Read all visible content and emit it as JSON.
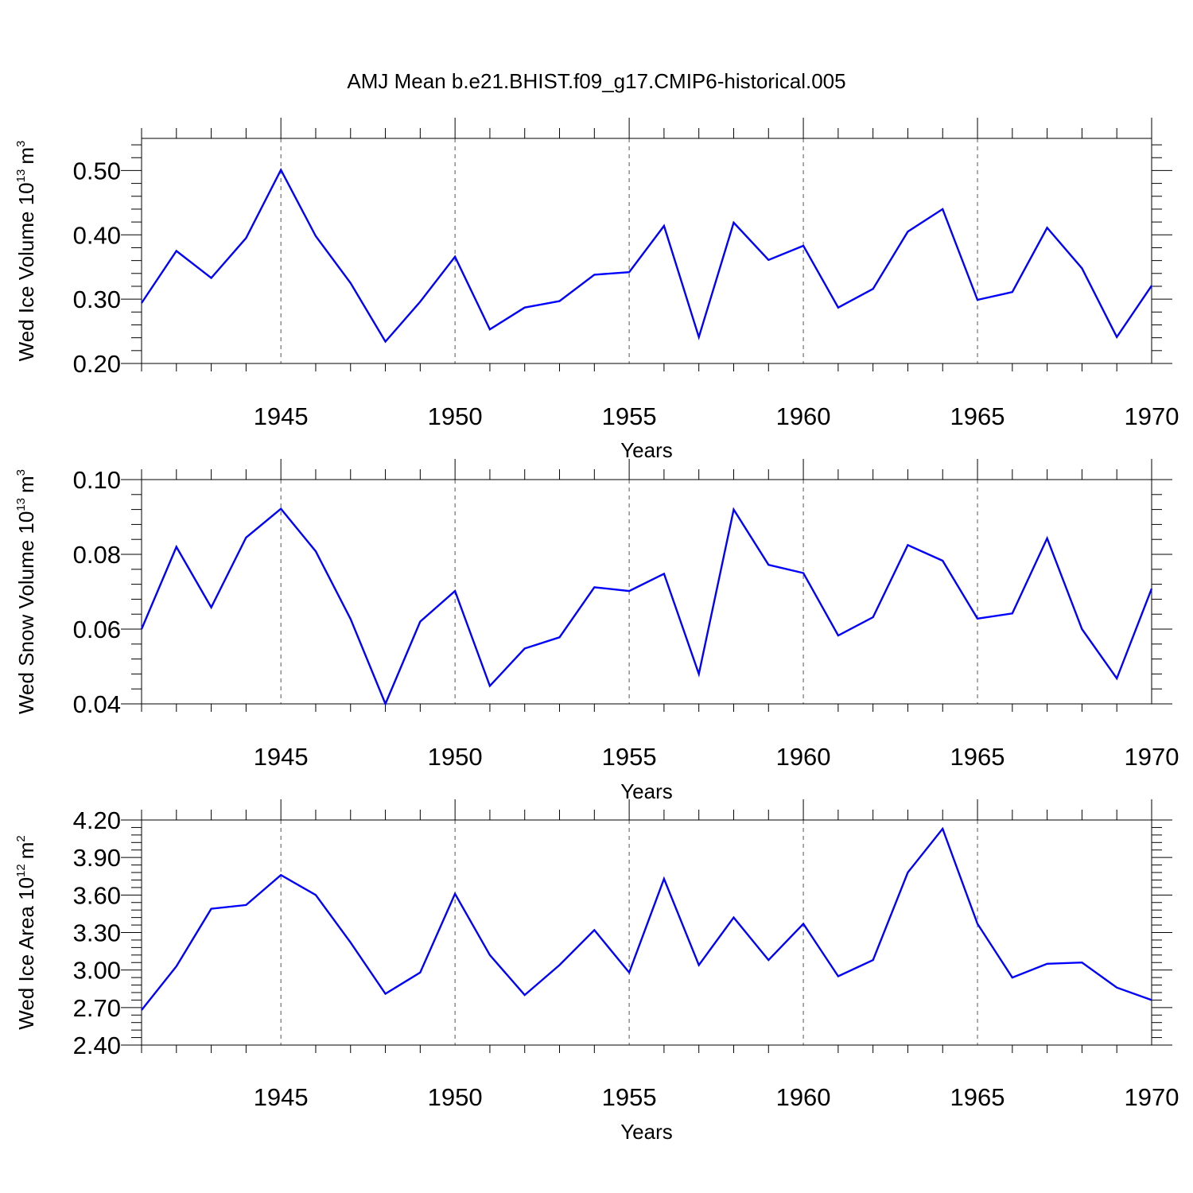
{
  "title": "AMJ Mean b.e21.BHIST.f09_g17.CMIP6-historical.005",
  "line_color": "#0000ff",
  "chart_data": [
    {
      "type": "line",
      "ylabel": "Wed Ice Volume 10",
      "ylabel_exp": "13",
      "ylabel_unit": "m",
      "ylabel_unit_exp": "3",
      "xlabel": "Years",
      "xlim": [
        1941,
        1970
      ],
      "ylim": [
        0.2,
        0.55
      ],
      "yticks": [
        "0.20",
        "0.30",
        "0.40",
        "0.50"
      ],
      "xticks": [
        "1945",
        "1950",
        "1955",
        "1960",
        "1965",
        "1970"
      ],
      "x": [
        1941,
        1942,
        1943,
        1944,
        1945,
        1946,
        1947,
        1948,
        1949,
        1950,
        1951,
        1952,
        1953,
        1954,
        1955,
        1956,
        1957,
        1958,
        1959,
        1960,
        1961,
        1962,
        1963,
        1964,
        1965,
        1966,
        1967,
        1968,
        1969,
        1970
      ],
      "values": [
        0.294,
        0.375,
        0.333,
        0.395,
        0.501,
        0.398,
        0.325,
        0.234,
        0.296,
        0.366,
        0.253,
        0.287,
        0.297,
        0.338,
        0.342,
        0.414,
        0.241,
        0.419,
        0.361,
        0.383,
        0.287,
        0.316,
        0.405,
        0.44,
        0.299,
        0.311,
        0.411,
        0.348,
        0.241,
        0.321
      ]
    },
    {
      "type": "line",
      "ylabel": "Wed Snow Volume 10",
      "ylabel_exp": "13",
      "ylabel_unit": "m",
      "ylabel_unit_exp": "3",
      "xlabel": "Years",
      "xlim": [
        1941,
        1970
      ],
      "ylim": [
        0.04,
        0.1
      ],
      "yticks": [
        "0.04",
        "0.06",
        "0.08",
        "0.10"
      ],
      "xticks": [
        "1945",
        "1950",
        "1955",
        "1960",
        "1965",
        "1970"
      ],
      "x": [
        1941,
        1942,
        1943,
        1944,
        1945,
        1946,
        1947,
        1948,
        1949,
        1950,
        1951,
        1952,
        1953,
        1954,
        1955,
        1956,
        1957,
        1958,
        1959,
        1960,
        1961,
        1962,
        1963,
        1964,
        1965,
        1966,
        1967,
        1968,
        1969,
        1970
      ],
      "values": [
        0.06,
        0.082,
        0.0658,
        0.0845,
        0.0922,
        0.0808,
        0.0627,
        0.04,
        0.062,
        0.0702,
        0.0448,
        0.0548,
        0.0578,
        0.0712,
        0.0702,
        0.0748,
        0.048,
        0.092,
        0.0772,
        0.075,
        0.0583,
        0.0632,
        0.0825,
        0.0783,
        0.0628,
        0.0642,
        0.0843,
        0.06,
        0.0468,
        0.0708
      ]
    },
    {
      "type": "line",
      "ylabel": "Wed Ice Area 10",
      "ylabel_exp": "12",
      "ylabel_unit": "m",
      "ylabel_unit_exp": "2",
      "xlabel": "Years",
      "xlim": [
        1941,
        1970
      ],
      "ylim": [
        2.4,
        4.2
      ],
      "yticks": [
        "2.40",
        "2.70",
        "3.00",
        "3.30",
        "3.60",
        "3.90",
        "4.20"
      ],
      "xticks": [
        "1945",
        "1950",
        "1955",
        "1960",
        "1965",
        "1970"
      ],
      "x": [
        1941,
        1942,
        1943,
        1944,
        1945,
        1946,
        1947,
        1948,
        1949,
        1950,
        1951,
        1952,
        1953,
        1954,
        1955,
        1956,
        1957,
        1958,
        1959,
        1960,
        1961,
        1962,
        1963,
        1964,
        1965,
        1966,
        1967,
        1968,
        1969,
        1970
      ],
      "values": [
        2.68,
        3.03,
        3.49,
        3.52,
        3.76,
        3.6,
        3.22,
        2.81,
        2.98,
        3.61,
        3.12,
        2.8,
        3.04,
        3.32,
        2.98,
        3.73,
        3.04,
        3.42,
        3.08,
        3.37,
        2.95,
        3.08,
        3.78,
        4.13,
        3.37,
        2.94,
        3.05,
        3.06,
        2.86,
        2.76
      ]
    }
  ]
}
